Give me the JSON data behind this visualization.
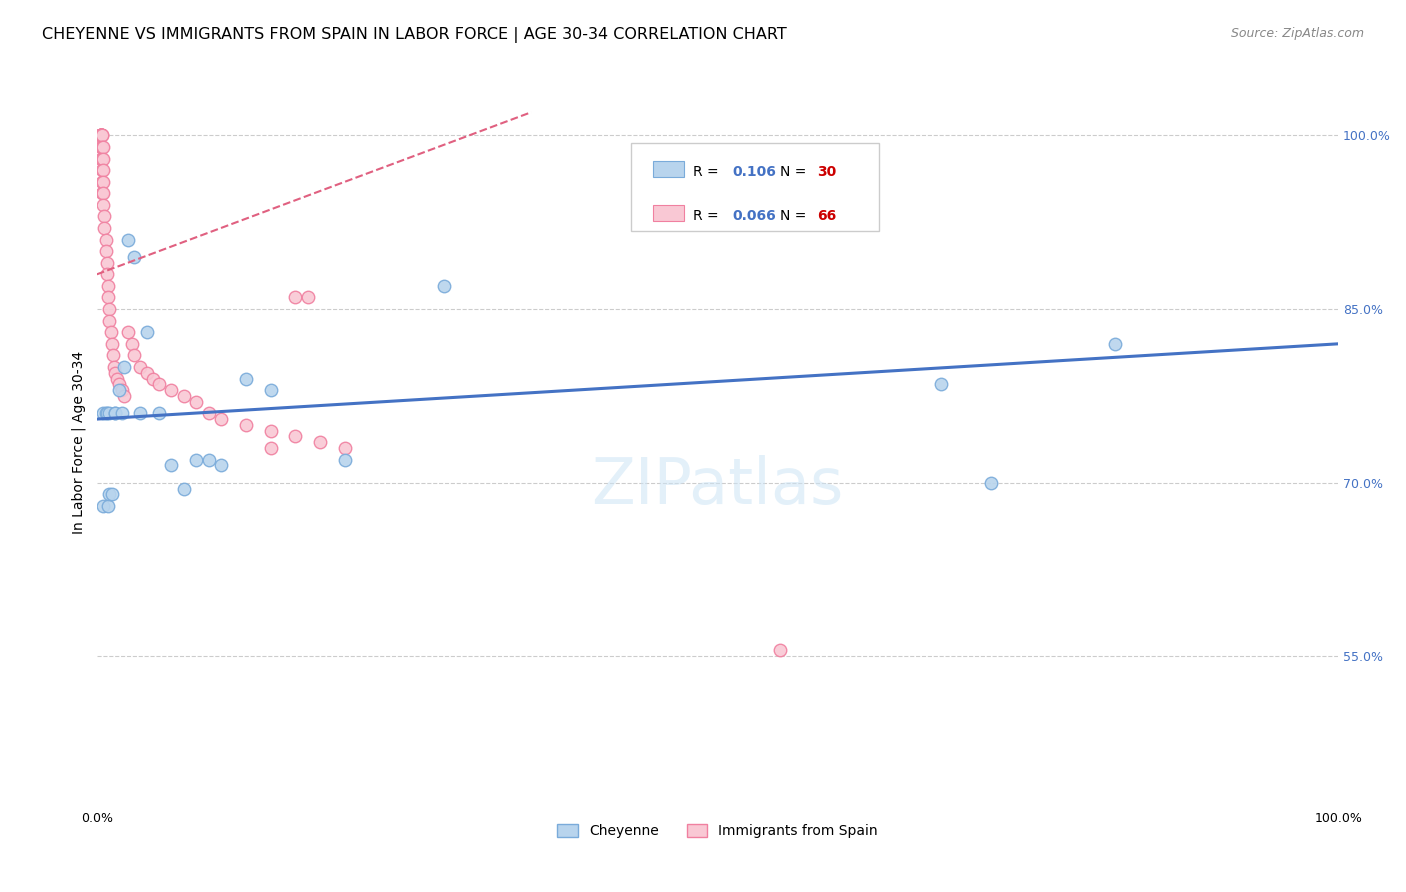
{
  "title": "CHEYENNE VS IMMIGRANTS FROM SPAIN IN LABOR FORCE | AGE 30-34 CORRELATION CHART",
  "source": "Source: ZipAtlas.com",
  "ylabel": "In Labor Force | Age 30-34",
  "xlim": [
    0.0,
    1.0
  ],
  "ylim": [
    0.42,
    1.05
  ],
  "yticks": [
    0.55,
    0.7,
    0.85,
    1.0
  ],
  "ytick_labels": [
    "55.0%",
    "70.0%",
    "85.0%",
    "100.0%"
  ],
  "xticks": [
    0.0,
    0.2,
    0.4,
    0.6,
    0.8,
    1.0
  ],
  "xtick_labels": [
    "0.0%",
    "",
    "",
    "",
    "",
    "100.0%"
  ],
  "background_color": "#ffffff",
  "grid_color": "#cccccc",
  "cheyenne_color": "#b8d4ed",
  "cheyenne_edge_color": "#7aabda",
  "spain_color": "#f9c8d4",
  "spain_edge_color": "#f080a0",
  "cheyenne_line_color": "#4472c4",
  "spain_line_color": "#e06080",
  "legend_R_color": "#4472c4",
  "legend_N_blue_color": "#4472c4",
  "legend_N_red_color": "#cc0000",
  "cheyenne_R": 0.106,
  "cheyenne_N": 30,
  "spain_R": 0.066,
  "spain_N": 66,
  "cheyenne_points_x": [
    0.005,
    0.005,
    0.007,
    0.008,
    0.009,
    0.01,
    0.01,
    0.012,
    0.015,
    0.015,
    0.018,
    0.02,
    0.022,
    0.025,
    0.03,
    0.035,
    0.04,
    0.05,
    0.06,
    0.07,
    0.08,
    0.09,
    0.1,
    0.12,
    0.14,
    0.2,
    0.28,
    0.68,
    0.72,
    0.82
  ],
  "cheyenne_points_y": [
    0.76,
    0.68,
    0.76,
    0.76,
    0.68,
    0.76,
    0.69,
    0.69,
    0.76,
    0.76,
    0.78,
    0.76,
    0.8,
    0.91,
    0.895,
    0.76,
    0.83,
    0.76,
    0.715,
    0.695,
    0.72,
    0.72,
    0.715,
    0.79,
    0.78,
    0.72,
    0.87,
    0.785,
    0.7,
    0.82
  ],
  "spain_points_x": [
    0.003,
    0.003,
    0.003,
    0.003,
    0.003,
    0.003,
    0.003,
    0.003,
    0.003,
    0.003,
    0.003,
    0.003,
    0.003,
    0.004,
    0.004,
    0.004,
    0.004,
    0.004,
    0.004,
    0.004,
    0.005,
    0.005,
    0.005,
    0.005,
    0.005,
    0.005,
    0.006,
    0.006,
    0.007,
    0.007,
    0.008,
    0.008,
    0.009,
    0.009,
    0.01,
    0.01,
    0.011,
    0.012,
    0.013,
    0.014,
    0.015,
    0.016,
    0.018,
    0.02,
    0.022,
    0.025,
    0.028,
    0.03,
    0.035,
    0.04,
    0.045,
    0.05,
    0.06,
    0.07,
    0.08,
    0.09,
    0.1,
    0.12,
    0.14,
    0.16,
    0.18,
    0.2,
    0.16,
    0.17,
    0.55,
    0.14
  ],
  "spain_points_y": [
    1.0,
    1.0,
    1.0,
    1.0,
    1.0,
    1.0,
    1.0,
    1.0,
    1.0,
    1.0,
    1.0,
    0.99,
    0.98,
    1.0,
    1.0,
    0.99,
    0.98,
    0.97,
    0.96,
    0.95,
    0.99,
    0.98,
    0.97,
    0.96,
    0.95,
    0.94,
    0.93,
    0.92,
    0.91,
    0.9,
    0.89,
    0.88,
    0.87,
    0.86,
    0.85,
    0.84,
    0.83,
    0.82,
    0.81,
    0.8,
    0.795,
    0.79,
    0.785,
    0.78,
    0.775,
    0.83,
    0.82,
    0.81,
    0.8,
    0.795,
    0.79,
    0.785,
    0.78,
    0.775,
    0.77,
    0.76,
    0.755,
    0.75,
    0.745,
    0.74,
    0.735,
    0.73,
    0.86,
    0.86,
    0.556,
    0.73
  ],
  "marker_size": 9,
  "title_fontsize": 11.5,
  "axis_label_fontsize": 10,
  "tick_fontsize": 9,
  "source_fontsize": 9
}
